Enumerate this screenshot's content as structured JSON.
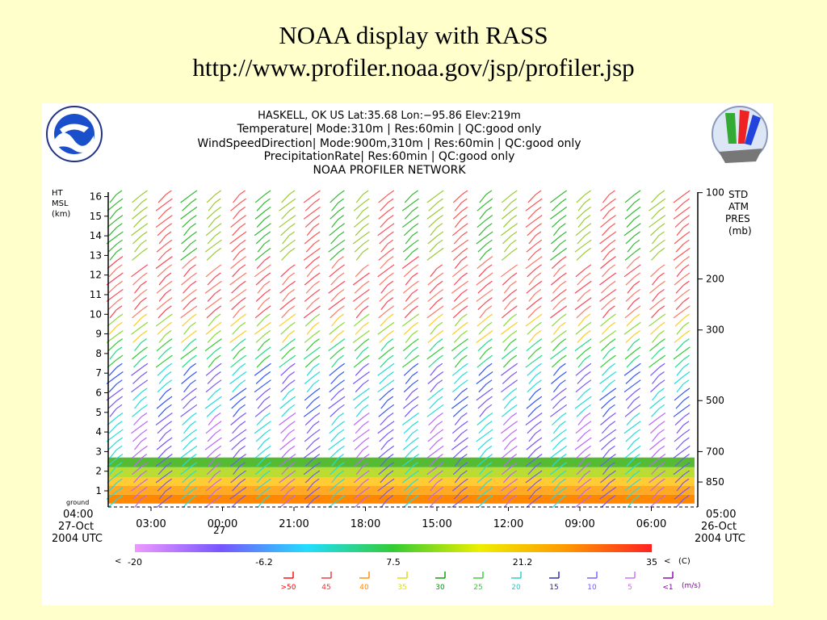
{
  "slide": {
    "title_line1": "NOAA display with RASS",
    "title_line2": "http://www.profiler.noaa.gov/jsp/profiler.jsp"
  },
  "plot": {
    "header": [
      "HASKELL, OK US  Lat:35.68 Lon:−95.86 Elev:219m",
      "Temperature| Mode:310m | Res:60min |  QC:good only",
      "WindSpeedDirection| Mode:900m,310m | Res:60min |  QC:good only",
      "PrecipitationRate| Res:60min |  QC:good only",
      "NOAA PROFILER NETWORK"
    ],
    "left_axis_title": [
      "HT",
      "MSL",
      "(km)"
    ],
    "right_axis_title": [
      "STD",
      "ATM",
      "PRES",
      "(mb)"
    ],
    "ground_label": "ground",
    "left_time": [
      "04:00",
      "27-Oct",
      "2004 UTC"
    ],
    "right_time": [
      "05:00",
      "26-Oct",
      "2004 UTC"
    ],
    "midnight_day": "27",
    "temp_scale": {
      "lt": "<",
      "gt": "<",
      "unit": "(C)"
    },
    "wind_unit": "(m/s)"
  },
  "icons": {
    "noaa_logo": "noaa-logo-icon",
    "npn_logo": "npn-logo-icon"
  },
  "chart_data": {
    "type": "wind-barb time-height",
    "x_axis": {
      "direction": "time decreasing left to right",
      "tick_labels": [
        "03:00",
        "00:00",
        "21:00",
        "18:00",
        "15:00",
        "12:00",
        "09:00",
        "06:00"
      ],
      "start": "04:00 27-Oct 2004 UTC",
      "end": "05:00 26-Oct 2004 UTC"
    },
    "y_axis_left": {
      "label": "HT MSL (km)",
      "ticks": [
        1,
        2,
        3,
        4,
        5,
        6,
        7,
        8,
        9,
        10,
        11,
        12,
        13,
        14,
        15,
        16
      ],
      "range": [
        0.2,
        16.5
      ]
    },
    "y_axis_right": {
      "label": "STD ATM PRES (mb)",
      "ticks": [
        {
          "mb": "100",
          "km": 16.2
        },
        {
          "mb": "200",
          "km": 11.8
        },
        {
          "mb": "300",
          "km": 9.2
        },
        {
          "mb": "500",
          "km": 5.6
        },
        {
          "mb": "700",
          "km": 3.0
        },
        {
          "mb": "850",
          "km": 1.45
        }
      ]
    },
    "temperature_scale": {
      "labels": [
        "-20",
        "-6.2",
        "7.5",
        "21.2",
        "35"
      ],
      "unit": "C",
      "colors": [
        "#ee99ff",
        "#7755ff",
        "#22ddff",
        "#33cc33",
        "#eeee00",
        "#ff9900",
        "#ff2222"
      ]
    },
    "wind_speed_legend": [
      {
        "label": ">50",
        "color": "#ff0000"
      },
      {
        "label": "45",
        "color": "#ee3333"
      },
      {
        "label": "40",
        "color": "#ff8800"
      },
      {
        "label": "35",
        "color": "#dddd00"
      },
      {
        "label": "30",
        "color": "#009900"
      },
      {
        "label": "25",
        "color": "#33cc33"
      },
      {
        "label": "20",
        "color": "#22cccc"
      },
      {
        "label": "15",
        "color": "#2222aa"
      },
      {
        "label": "10",
        "color": "#7755ff"
      },
      {
        "label": "5",
        "color": "#cc66ff"
      },
      {
        "label": "<1",
        "color": "#8800aa"
      }
    ]
  }
}
